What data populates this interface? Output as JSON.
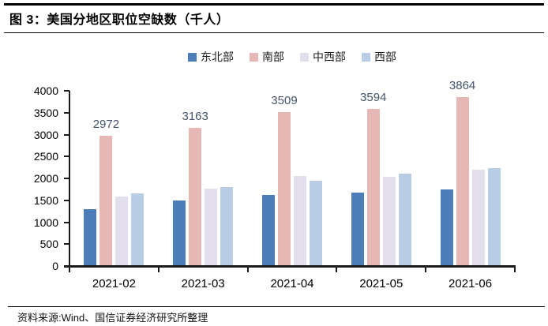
{
  "figure": {
    "title": "图 3：美国分地区职位空缺数（千人）",
    "source": "资料来源:Wind、国信证券经济研究所整理"
  },
  "chart_data": {
    "type": "bar",
    "title": "美国分地区职位空缺数（千人）",
    "categories": [
      "2021-02",
      "2021-03",
      "2021-04",
      "2021-05",
      "2021-06"
    ],
    "series": [
      {
        "name": "东北部",
        "color": "#4C7DB8",
        "values": [
          1290,
          1500,
          1620,
          1670,
          1740
        ],
        "labels_shown": false
      },
      {
        "name": "南部",
        "color": "#E5B8B6",
        "values": [
          2972,
          3163,
          3509,
          3594,
          3864
        ],
        "labels_shown": true
      },
      {
        "name": "中西部",
        "color": "#E3DEEC",
        "values": [
          1580,
          1770,
          2060,
          2040,
          2200
        ],
        "labels_shown": false
      },
      {
        "name": "西部",
        "color": "#B8CCE4",
        "values": [
          1650,
          1810,
          1950,
          2110,
          2230
        ],
        "labels_shown": false
      }
    ],
    "data_label_color": "#44546A",
    "xlabel": "",
    "ylabel": "",
    "ylim": [
      0,
      4000
    ],
    "yticks": [
      0,
      500,
      1000,
      1500,
      2000,
      2500,
      3000,
      3500,
      4000
    ],
    "grid": false,
    "legend_position": "top",
    "axis_color": "#1a1a1a"
  }
}
